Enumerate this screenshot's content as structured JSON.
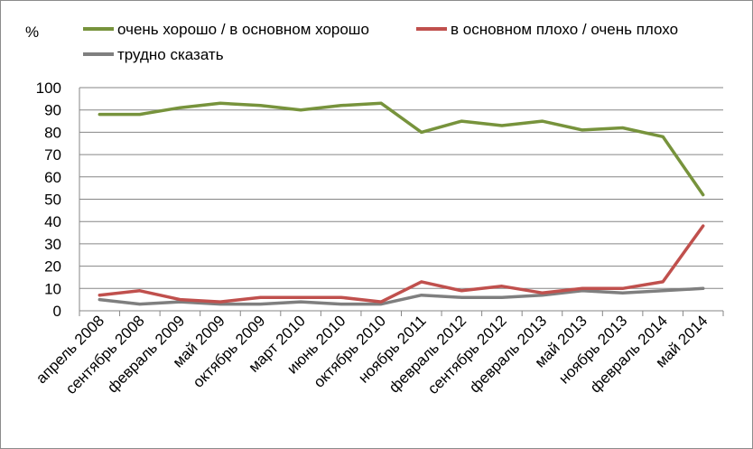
{
  "chart_data": {
    "type": "line",
    "title": "",
    "ylabel": "%",
    "xlabel": "",
    "ylim": [
      0,
      100
    ],
    "yticks": [
      0,
      10,
      20,
      30,
      40,
      50,
      60,
      70,
      80,
      90,
      100
    ],
    "grid": "horizontal",
    "legend_position": "top",
    "categories": [
      "апрель 2008",
      "сентябрь 2008",
      "февраль 2009",
      "май 2009",
      "октябрь 2009",
      "март 2010",
      "июнь 2010",
      "октябрь 2010",
      "ноябрь 2011",
      "февраль 2012",
      "сентябрь 2012",
      "февраль 2013",
      "май 2013",
      "ноябрь 2013",
      "февраль 2014",
      "май 2014"
    ],
    "series": [
      {
        "name": "очень хорошо / в основном хорошо",
        "color": "#77933c",
        "values": [
          88,
          88,
          91,
          93,
          92,
          90,
          92,
          93,
          80,
          85,
          83,
          85,
          81,
          82,
          78,
          52
        ]
      },
      {
        "name": "в основном плохо / очень плохо",
        "color": "#c0504d",
        "values": [
          7,
          9,
          5,
          4,
          6,
          6,
          6,
          4,
          13,
          9,
          11,
          8,
          10,
          10,
          13,
          38
        ]
      },
      {
        "name": "трудно сказать",
        "color": "#7f7f7f",
        "values": [
          5,
          3,
          4,
          3,
          3,
          4,
          3,
          3,
          7,
          6,
          6,
          7,
          9,
          8,
          9,
          10
        ]
      }
    ]
  }
}
